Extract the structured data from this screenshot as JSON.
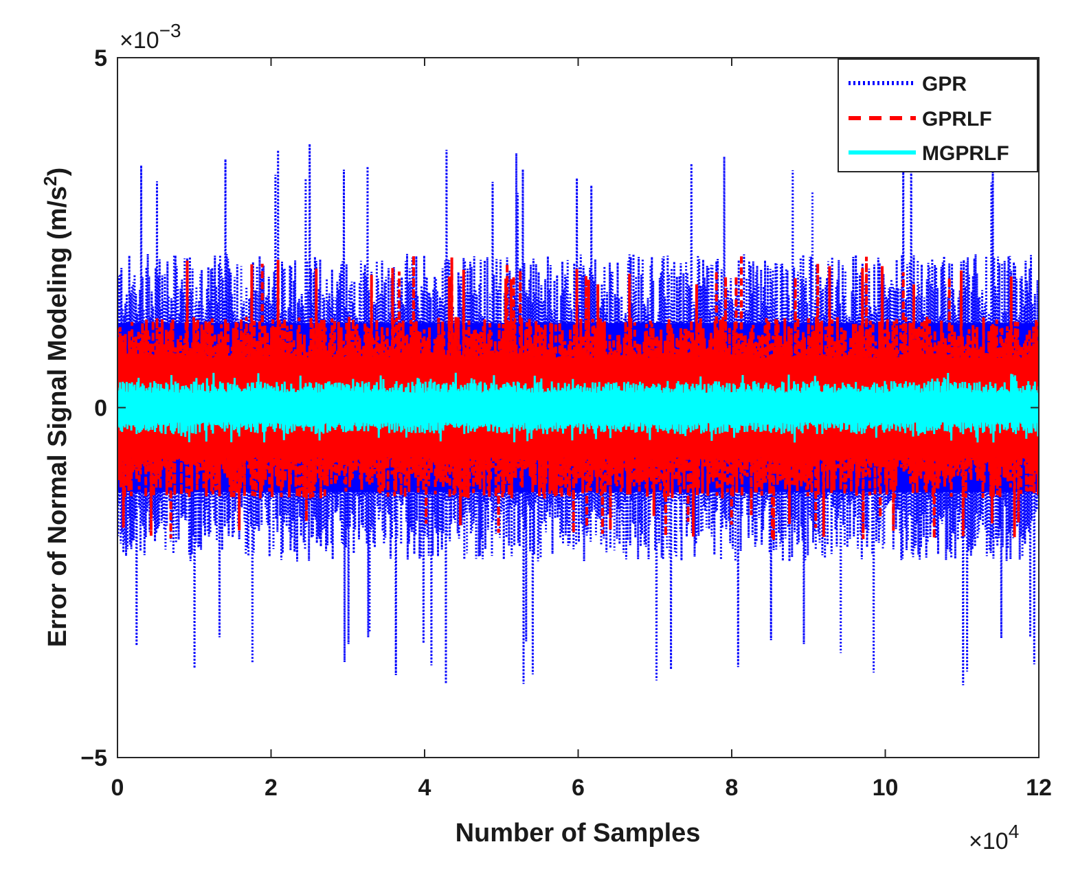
{
  "chart_data": {
    "type": "line",
    "title": "",
    "xlabel": "Number of Samples",
    "ylabel_main": "Error of Normal Signal Modeling (m/s",
    "ylabel_sup": "2",
    "ylabel_close": ")",
    "x_multiplier": {
      "base": "×10",
      "exp": "4"
    },
    "y_multiplier": {
      "base": "×10",
      "exp": "−3"
    },
    "xlim": [
      0,
      12
    ],
    "ylim": [
      -5,
      5
    ],
    "x_ticks": [
      0,
      2,
      4,
      6,
      8,
      10,
      12
    ],
    "x_tick_labels": [
      "0",
      "2",
      "4",
      "6",
      "8",
      "10",
      "12"
    ],
    "y_ticks": [
      -5,
      0,
      5
    ],
    "y_tick_labels": [
      "−5",
      "0",
      "5"
    ],
    "legend_position": "top-right",
    "series": [
      {
        "name": "GPR",
        "color": "#0000ff",
        "style": "dotted",
        "typical_amplitude": 2.2,
        "peak_min": -4.0,
        "peak_max": 3.8
      },
      {
        "name": "GPRLF",
        "color": "#ff0000",
        "style": "dashed",
        "typical_amplitude": 1.3,
        "peak_min": -1.9,
        "peak_max": 2.2
      },
      {
        "name": "MGPRLF",
        "color": "#00ffff",
        "style": "solid",
        "typical_amplitude": 0.38,
        "peak_min": -0.5,
        "peak_max": 0.5
      }
    ]
  }
}
